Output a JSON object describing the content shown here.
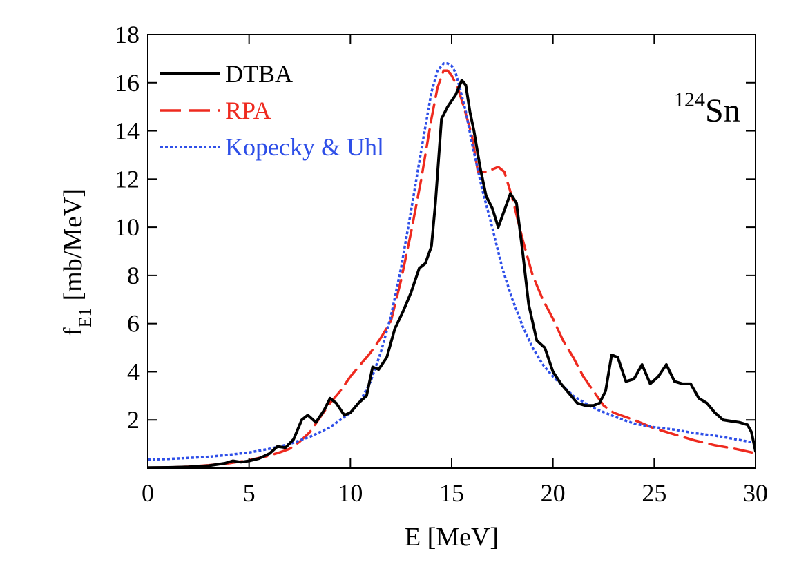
{
  "chart_data": {
    "type": "line",
    "title": "",
    "xlabel": "E [MeV]",
    "ylabel_main": "f",
    "ylabel_sub": "E1",
    "ylabel_unit": "[mb/MeV]",
    "xlim": [
      0,
      30
    ],
    "ylim": [
      0,
      18
    ],
    "xticks": [
      0,
      5,
      10,
      15,
      20,
      25,
      30
    ],
    "yticks": [
      2,
      4,
      6,
      8,
      10,
      12,
      14,
      16,
      18
    ],
    "grid": false,
    "legend_position": "top-left",
    "annotation": {
      "mass": "124",
      "element": "Sn"
    },
    "series": [
      {
        "name": "DTBA",
        "color": "#000000",
        "style": "solid",
        "x": [
          0,
          1,
          2,
          3,
          3.8,
          4.2,
          4.6,
          5,
          5.5,
          6,
          6.4,
          6.8,
          7.2,
          7.6,
          7.9,
          8.3,
          8.7,
          9.0,
          9.3,
          9.7,
          10.0,
          10.4,
          10.8,
          11.1,
          11.4,
          11.8,
          12.2,
          12.6,
          13.0,
          13.4,
          13.7,
          14.0,
          14.2,
          14.5,
          14.8,
          15.2,
          15.5,
          15.7,
          15.9,
          16.1,
          16.4,
          16.7,
          17.0,
          17.3,
          17.6,
          17.9,
          18.2,
          18.5,
          18.8,
          19.2,
          19.6,
          20.0,
          20.4,
          20.8,
          21.2,
          21.6,
          22.0,
          22.3,
          22.6,
          22.9,
          23.2,
          23.6,
          24.0,
          24.4,
          24.8,
          25.2,
          25.6,
          26.0,
          26.4,
          26.8,
          27.2,
          27.6,
          28.0,
          28.4,
          28.8,
          29.2,
          29.6,
          29.8,
          30.0
        ],
        "y": [
          0.02,
          0.03,
          0.05,
          0.1,
          0.2,
          0.3,
          0.25,
          0.3,
          0.4,
          0.6,
          0.9,
          0.85,
          1.2,
          2.0,
          2.2,
          1.9,
          2.4,
          2.9,
          2.7,
          2.2,
          2.3,
          2.7,
          3.0,
          4.2,
          4.1,
          4.6,
          5.8,
          6.5,
          7.3,
          8.3,
          8.5,
          9.2,
          11.0,
          14.5,
          15.0,
          15.5,
          16.1,
          15.9,
          14.8,
          14.0,
          12.5,
          11.3,
          10.8,
          10.0,
          10.7,
          11.4,
          11.0,
          9.0,
          6.8,
          5.3,
          5.0,
          4.0,
          3.5,
          3.1,
          2.7,
          2.6,
          2.6,
          2.7,
          3.2,
          4.7,
          4.6,
          3.6,
          3.7,
          4.3,
          3.5,
          3.8,
          4.3,
          3.6,
          3.5,
          3.5,
          2.9,
          2.7,
          2.3,
          2.0,
          1.95,
          1.9,
          1.8,
          1.5,
          0.7
        ]
      },
      {
        "name": "RPA",
        "color": "#ee2a1f",
        "style": "dashed",
        "x": [
          0,
          1,
          2,
          3,
          4,
          5,
          6,
          6.5,
          7,
          7.5,
          8,
          8.5,
          9,
          9.5,
          10,
          10.5,
          11,
          11.5,
          12,
          12.5,
          13,
          13.5,
          14,
          14.3,
          14.6,
          14.8,
          15.0,
          15.3,
          15.6,
          16.0,
          16.3,
          16.6,
          16.8,
          17.0,
          17.3,
          17.6,
          18.0,
          18.5,
          19.0,
          19.5,
          20.0,
          20.5,
          21.0,
          21.5,
          22.0,
          22.5,
          23.0,
          24.0,
          25.0,
          26.0,
          27.0,
          28.0,
          29.0,
          30.0
        ],
        "y": [
          0.02,
          0.03,
          0.06,
          0.12,
          0.2,
          0.33,
          0.52,
          0.65,
          0.8,
          1.1,
          1.5,
          2.1,
          2.7,
          3.2,
          3.8,
          4.3,
          4.8,
          5.4,
          6.1,
          7.8,
          9.8,
          12.0,
          14.5,
          15.8,
          16.5,
          16.5,
          16.3,
          15.8,
          15.0,
          13.8,
          12.3,
          12.3,
          12.3,
          12.4,
          12.5,
          12.3,
          11.2,
          9.5,
          8.0,
          7.0,
          6.2,
          5.3,
          4.6,
          3.8,
          3.2,
          2.6,
          2.3,
          2.0,
          1.65,
          1.4,
          1.15,
          0.95,
          0.8,
          0.62
        ]
      },
      {
        "name": "Kopecky & Uhl",
        "color": "#2e4fe8",
        "style": "dotted",
        "x": [
          0,
          1,
          2,
          3,
          4,
          5,
          6,
          7,
          8,
          9,
          10,
          10.5,
          11,
          11.5,
          12,
          12.5,
          13,
          13.5,
          14,
          14.3,
          14.6,
          14.8,
          15.0,
          15.2,
          15.4,
          15.7,
          16.0,
          16.5,
          17.0,
          17.5,
          18.0,
          18.5,
          19.0,
          19.5,
          20.0,
          21.0,
          22.0,
          23.0,
          24.0,
          25.0,
          26.0,
          27.0,
          28.0,
          29.0,
          30.0
        ],
        "y": [
          0.35,
          0.38,
          0.42,
          0.47,
          0.55,
          0.65,
          0.8,
          1.0,
          1.3,
          1.7,
          2.3,
          2.8,
          3.6,
          4.8,
          6.3,
          8.3,
          10.7,
          13.2,
          15.6,
          16.5,
          16.8,
          16.8,
          16.7,
          16.4,
          15.8,
          14.8,
          13.5,
          11.6,
          10.0,
          8.3,
          7.0,
          5.9,
          5.0,
          4.3,
          3.8,
          3.0,
          2.5,
          2.15,
          1.85,
          1.7,
          1.6,
          1.45,
          1.35,
          1.2,
          1.05
        ]
      }
    ]
  }
}
